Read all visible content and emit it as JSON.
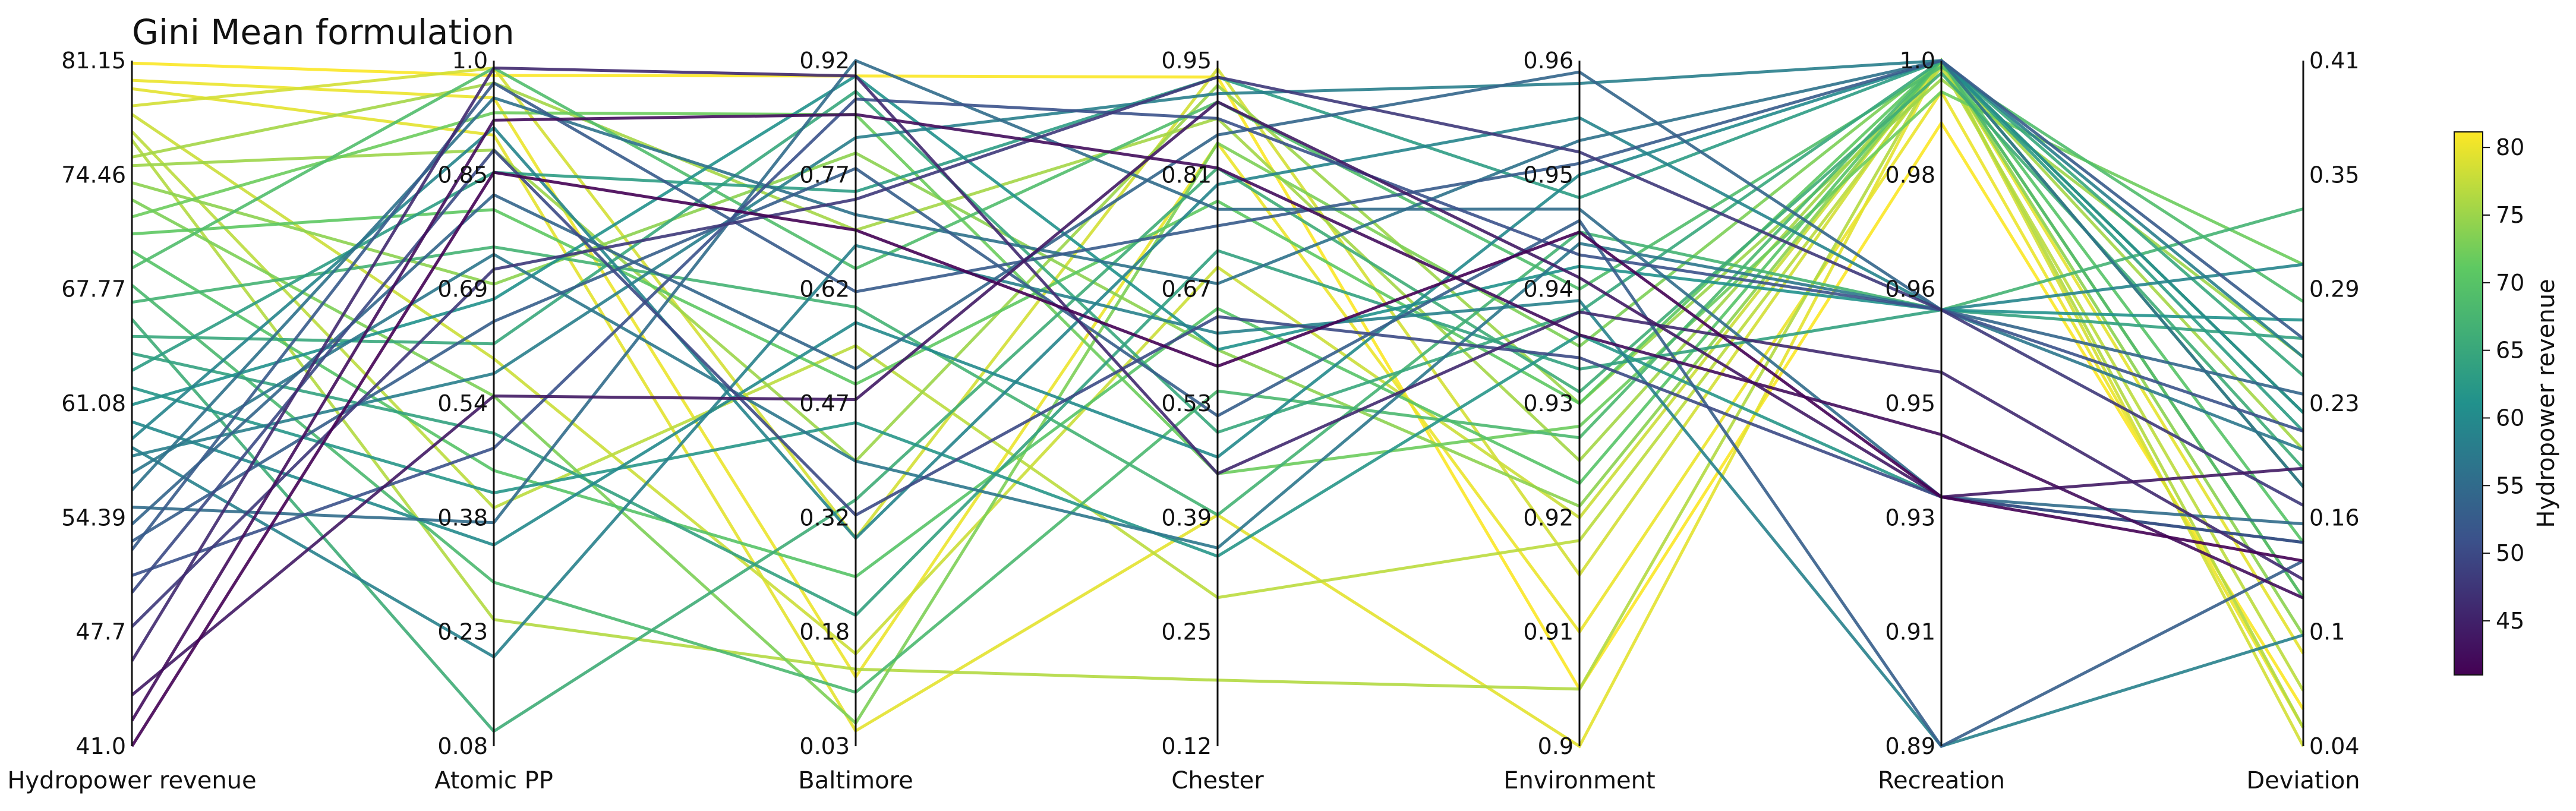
{
  "chart_data": {
    "type": "parallel_coordinates",
    "title": "Gini Mean formulation",
    "axes": [
      {
        "name": "Hydropower revenue",
        "ticks": [
          "81.15",
          "74.46",
          "67.77",
          "61.08",
          "54.39",
          "47.7",
          "41.0"
        ],
        "range": [
          41.0,
          81.15
        ]
      },
      {
        "name": "Atomic PP",
        "ticks": [
          "1.0",
          "0.85",
          "0.69",
          "0.54",
          "0.38",
          "0.23",
          "0.08"
        ],
        "range": [
          0.08,
          1.0
        ]
      },
      {
        "name": "Baltimore",
        "ticks": [
          "0.92",
          "0.77",
          "0.62",
          "0.47",
          "0.32",
          "0.18",
          "0.03"
        ],
        "range": [
          0.03,
          0.92
        ]
      },
      {
        "name": "Chester",
        "ticks": [
          "0.95",
          "0.81",
          "0.67",
          "0.53",
          "0.39",
          "0.25",
          "0.12"
        ],
        "range": [
          0.12,
          0.95
        ]
      },
      {
        "name": "Environment",
        "ticks": [
          "0.96",
          "0.95",
          "0.94",
          "0.93",
          "0.92",
          "0.91",
          "0.9"
        ],
        "range": [
          0.9,
          0.96
        ]
      },
      {
        "name": "Recreation",
        "ticks": [
          "1.0",
          "0.98",
          "0.96",
          "0.95",
          "0.93",
          "0.91",
          "0.89"
        ],
        "range": [
          0.89,
          1.0
        ]
      },
      {
        "name": "Deviation",
        "ticks": [
          "0.41",
          "0.35",
          "0.29",
          "0.23",
          "0.16",
          "0.1",
          "0.04"
        ],
        "range": [
          0.04,
          0.41
        ]
      }
    ],
    "colorbar": {
      "label": "Hydropower revenue",
      "ticks": [
        "80",
        "75",
        "70",
        "65",
        "60",
        "55",
        "50",
        "45"
      ],
      "range": [
        41.0,
        81.15
      ],
      "colormap": "viridis",
      "colors": [
        "#440154",
        "#3b528b",
        "#21918c",
        "#5ec962",
        "#fde725"
      ]
    },
    "lines": [
      [
        81.0,
        0.98,
        0.9,
        0.93,
        0.905,
        0.99,
        0.06
      ],
      [
        80.0,
        0.95,
        0.12,
        0.85,
        0.91,
        0.995,
        0.05
      ],
      [
        79.5,
        0.9,
        0.05,
        0.4,
        0.9,
        1.0,
        0.09
      ],
      [
        78.5,
        0.99,
        0.3,
        0.94,
        0.915,
        1.0,
        0.04
      ],
      [
        78.0,
        0.6,
        0.15,
        0.7,
        0.92,
        1.0,
        0.12
      ],
      [
        77.0,
        0.4,
        0.55,
        0.3,
        0.918,
        0.999,
        0.07
      ],
      [
        76.5,
        0.25,
        0.13,
        0.2,
        0.905,
        1.0,
        0.05
      ],
      [
        75.5,
        0.97,
        0.7,
        0.88,
        0.925,
        1.0,
        0.2
      ],
      [
        75.0,
        0.88,
        0.4,
        0.92,
        0.93,
        0.997,
        0.25
      ],
      [
        74.0,
        0.7,
        0.8,
        0.6,
        0.921,
        1.0,
        0.1
      ],
      [
        73.0,
        0.55,
        0.06,
        0.85,
        0.935,
        1.0,
        0.18
      ],
      [
        72.0,
        0.93,
        0.85,
        0.45,
        0.928,
        0.995,
        0.3
      ],
      [
        71.0,
        0.8,
        0.5,
        0.78,
        0.93,
        1.0,
        0.22
      ],
      [
        70.0,
        0.45,
        0.25,
        0.65,
        0.923,
        1.0,
        0.15
      ],
      [
        69.0,
        0.99,
        0.65,
        0.9,
        0.94,
        0.999,
        0.28
      ],
      [
        68.0,
        0.3,
        0.1,
        0.55,
        0.927,
        1.0,
        0.12
      ],
      [
        67.0,
        0.75,
        0.6,
        0.4,
        0.945,
        0.96,
        0.33
      ],
      [
        66.0,
        0.1,
        0.35,
        0.82,
        0.931,
        0.998,
        0.19
      ],
      [
        65.0,
        0.62,
        0.88,
        0.5,
        0.938,
        1.0,
        0.24
      ],
      [
        64.0,
        0.5,
        0.2,
        0.72,
        0.933,
        0.96,
        0.26
      ],
      [
        63.0,
        0.85,
        0.75,
        0.93,
        0.948,
        1.0,
        0.21
      ],
      [
        62.0,
        0.42,
        0.45,
        0.35,
        0.936,
        0.93,
        0.15
      ],
      [
        61.0,
        0.68,
        0.9,
        0.6,
        0.942,
        0.96,
        0.27
      ],
      [
        60.0,
        0.35,
        0.58,
        0.47,
        0.95,
        1.0,
        0.22
      ],
      [
        59.0,
        0.91,
        0.3,
        0.8,
        0.955,
        0.96,
        0.3
      ],
      [
        58.5,
        0.2,
        0.68,
        0.62,
        0.939,
        0.89,
        0.1
      ],
      [
        58.0,
        0.58,
        0.82,
        0.91,
        0.958,
        1.0,
        0.25
      ],
      [
        57.0,
        0.74,
        0.4,
        0.36,
        0.944,
        0.96,
        0.2
      ],
      [
        56.0,
        0.95,
        0.72,
        0.68,
        0.953,
        1.0,
        0.18
      ],
      [
        55.0,
        0.38,
        0.92,
        0.77,
        0.947,
        0.93,
        0.16
      ],
      [
        54.0,
        0.82,
        0.52,
        0.86,
        0.959,
        0.96,
        0.23
      ],
      [
        53.0,
        0.65,
        0.78,
        0.52,
        0.946,
        0.89,
        0.14
      ],
      [
        52.5,
        0.97,
        0.62,
        0.75,
        0.951,
        1.0,
        0.26
      ],
      [
        51.0,
        0.48,
        0.87,
        0.88,
        0.943,
        0.96,
        0.21
      ],
      [
        50.0,
        0.88,
        0.33,
        0.64,
        0.934,
        0.93,
        0.15
      ],
      [
        48.0,
        0.72,
        0.74,
        0.93,
        0.952,
        0.96,
        0.17
      ],
      [
        46.0,
        0.99,
        0.9,
        0.45,
        0.938,
        0.95,
        0.13
      ],
      [
        44.0,
        0.55,
        0.48,
        0.9,
        0.941,
        0.93,
        0.19
      ],
      [
        42.5,
        0.92,
        0.85,
        0.82,
        0.936,
        0.94,
        0.12
      ],
      [
        41.0,
        0.85,
        0.7,
        0.58,
        0.945,
        0.93,
        0.14
      ]
    ]
  }
}
